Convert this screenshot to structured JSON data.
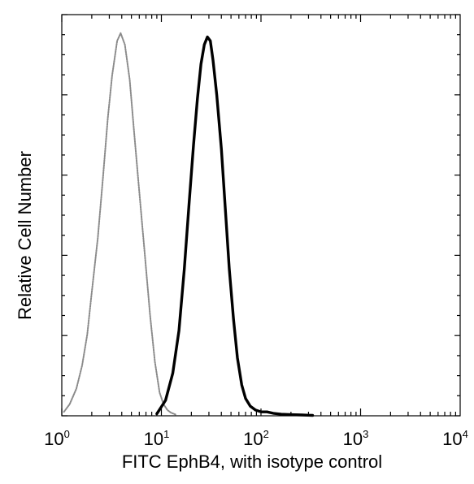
{
  "chart_data": {
    "type": "area",
    "title": "",
    "xlabel": "FITC  EphB4,  with isotype control",
    "ylabel": "Relative Cell Number",
    "x_scale": "log",
    "xlim": [
      1,
      10000
    ],
    "ylim": [
      0,
      1
    ],
    "x_tick_labels": [
      {
        "value": 1,
        "base": "10",
        "exp": "0"
      },
      {
        "value": 10,
        "base": "10",
        "exp": "1"
      },
      {
        "value": 100,
        "base": "10",
        "exp": "2"
      },
      {
        "value": 1000,
        "base": "10",
        "exp": "3"
      },
      {
        "value": 10000,
        "base": "10",
        "exp": "4"
      }
    ],
    "y_tick_labels": [],
    "series": [
      {
        "style": "dotted-grey",
        "color": "#8a8a8a",
        "x": [
          1.05,
          1.2,
          1.4,
          1.6,
          1.8,
          2.0,
          2.3,
          2.6,
          2.9,
          3.2,
          3.6,
          3.9,
          4.3,
          4.8,
          5.3,
          6.0,
          6.8,
          7.7,
          8.6,
          9.6,
          10.5,
          11.5,
          12.5,
          14
        ],
        "y": [
          0.01,
          0.03,
          0.07,
          0.13,
          0.21,
          0.32,
          0.46,
          0.62,
          0.77,
          0.88,
          0.97,
          0.99,
          0.96,
          0.87,
          0.74,
          0.58,
          0.42,
          0.26,
          0.14,
          0.06,
          0.03,
          0.015,
          0.008,
          0.003
        ]
      },
      {
        "style": "solid-black",
        "color": "#000000",
        "x": [
          9,
          11,
          13,
          15,
          17,
          19,
          21,
          23,
          25,
          27,
          29,
          31,
          33,
          36,
          40,
          44,
          48,
          53,
          58,
          64,
          70,
          78,
          88,
          100,
          115,
          135,
          160,
          200,
          260,
          330
        ],
        "y": [
          0.005,
          0.04,
          0.11,
          0.22,
          0.38,
          0.55,
          0.7,
          0.82,
          0.91,
          0.96,
          0.98,
          0.97,
          0.92,
          0.83,
          0.69,
          0.53,
          0.38,
          0.25,
          0.15,
          0.08,
          0.045,
          0.025,
          0.015,
          0.01,
          0.01,
          0.006,
          0.004,
          0.003,
          0.002,
          0.001
        ]
      }
    ]
  }
}
